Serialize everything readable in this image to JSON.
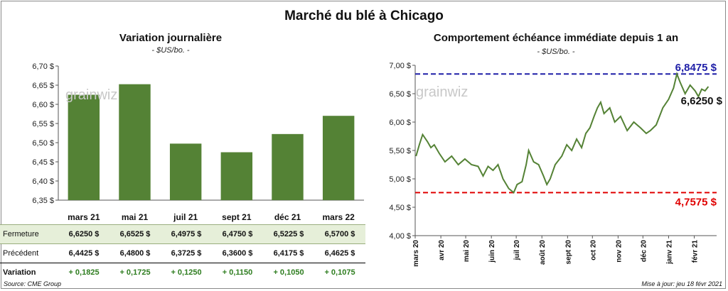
{
  "title": "Marché du blé à Chicago",
  "left_panel": {
    "title": "Variation journalière",
    "unit": "- $US/bo. -"
  },
  "right_panel": {
    "title": "Comportement échéance immédiate depuis 1 an",
    "unit": "- $US/bo. -"
  },
  "watermark": "grainwiz",
  "table": {
    "rows": [
      {
        "label": "Fermeture",
        "values": [
          "6,6250 $",
          "6,6525 $",
          "6,4975 $",
          "6,4750 $",
          "6,5225 $",
          "6,5700 $"
        ]
      },
      {
        "label": "Précédent",
        "values": [
          "6,4425 $",
          "6,4800 $",
          "6,3725 $",
          "6,3600 $",
          "6,4175 $",
          "6,4625 $"
        ]
      },
      {
        "label": "Variation",
        "values": [
          "+ 0,1825",
          "+ 0,1725",
          "+ 0,1250",
          "+ 0,1150",
          "+ 0,1050",
          "+ 0,1075"
        ]
      }
    ]
  },
  "footer": {
    "source": "Source: CME Group",
    "updated": "Mise à jour: jeu 18 févr 2021"
  },
  "colors": {
    "bar": "#548235",
    "line": "#548235",
    "high": "#1f1fa8",
    "low": "#e00000",
    "up": "#2e7d1f"
  },
  "chart_data": [
    {
      "type": "bar",
      "title": "Variation journalière",
      "categories": [
        "mars 21",
        "mai 21",
        "juil 21",
        "sept 21",
        "déc 21",
        "mars 22"
      ],
      "values": [
        6.625,
        6.6525,
        6.4975,
        6.475,
        6.5225,
        6.57
      ],
      "ylim": [
        6.35,
        6.7
      ],
      "yticks": [
        6.35,
        6.4,
        6.45,
        6.5,
        6.55,
        6.6,
        6.65,
        6.7
      ],
      "ytick_labels": [
        "6,35 $",
        "6,40 $",
        "6,45 $",
        "6,50 $",
        "6,55 $",
        "6,60 $",
        "6,65 $",
        "6,70 $"
      ],
      "ylabel": "$US/bo.",
      "grid": false
    },
    {
      "type": "line",
      "title": "Comportement échéance immédiate depuis 1 an",
      "ylabel": "$US/bo.",
      "ylim": [
        4.0,
        7.0
      ],
      "yticks": [
        4.0,
        4.5,
        5.0,
        5.5,
        6.0,
        6.5,
        7.0
      ],
      "ytick_labels": [
        "4,00 $",
        "4,50 $",
        "5,00 $",
        "5,50 $",
        "6,00 $",
        "6,50 $",
        "7,00 $"
      ],
      "xlim": [
        "2020-03-01",
        "2021-02-28"
      ],
      "xticks": [
        "2020-03-01",
        "2020-04-01",
        "2020-05-01",
        "2020-06-01",
        "2020-07-01",
        "2020-08-01",
        "2020-09-01",
        "2020-10-01",
        "2020-11-01",
        "2020-12-01",
        "2021-01-01",
        "2021-02-01"
      ],
      "xtick_labels": [
        "mars 20",
        "avr 20",
        "mai 20",
        "juin 20",
        "juil 20",
        "août 20",
        "sept 20",
        "oct 20",
        "nov 20",
        "déc 20",
        "janv 21",
        "févr 21"
      ],
      "series": [
        {
          "x": [
            "2020-03-02",
            "2020-03-06",
            "2020-03-10",
            "2020-03-16",
            "2020-03-20",
            "2020-03-24",
            "2020-03-30",
            "2020-04-06",
            "2020-04-14",
            "2020-04-22",
            "2020-04-30",
            "2020-05-08",
            "2020-05-16",
            "2020-05-22",
            "2020-05-28",
            "2020-06-03",
            "2020-06-09",
            "2020-06-15",
            "2020-06-22",
            "2020-06-28",
            "2020-07-02",
            "2020-07-08",
            "2020-07-13",
            "2020-07-16",
            "2020-07-22",
            "2020-07-28",
            "2020-08-03",
            "2020-08-07",
            "2020-08-11",
            "2020-08-17",
            "2020-08-25",
            "2020-08-31",
            "2020-09-06",
            "2020-09-12",
            "2020-09-18",
            "2020-09-23",
            "2020-09-28",
            "2020-10-03",
            "2020-10-07",
            "2020-10-11",
            "2020-10-15",
            "2020-10-22",
            "2020-10-28",
            "2020-11-04",
            "2020-11-12",
            "2020-11-20",
            "2020-11-28",
            "2020-12-05",
            "2020-12-10",
            "2020-12-17",
            "2020-12-25",
            "2021-01-01",
            "2021-01-07",
            "2021-01-11",
            "2021-01-15",
            "2021-01-21",
            "2021-01-27",
            "2021-02-02",
            "2021-02-06",
            "2021-02-10",
            "2021-02-14",
            "2021-02-18"
          ],
          "y": [
            5.4,
            5.6,
            5.78,
            5.65,
            5.55,
            5.6,
            5.45,
            5.3,
            5.4,
            5.25,
            5.35,
            5.25,
            5.22,
            5.05,
            5.22,
            5.15,
            5.25,
            5.0,
            4.83,
            4.7575,
            4.9,
            4.95,
            5.25,
            5.5,
            5.3,
            5.25,
            5.05,
            4.9,
            5.0,
            5.25,
            5.4,
            5.6,
            5.5,
            5.7,
            5.55,
            5.8,
            5.9,
            6.1,
            6.25,
            6.35,
            6.15,
            6.25,
            6.0,
            6.1,
            5.85,
            6.0,
            5.9,
            5.8,
            5.85,
            5.95,
            6.25,
            6.4,
            6.6,
            6.8475,
            6.7,
            6.5,
            6.65,
            6.55,
            6.45,
            6.58,
            6.55,
            6.625
          ]
        }
      ],
      "annotations": [
        {
          "label": "6,8475 $",
          "value": 6.8475,
          "kind": "high"
        },
        {
          "label": "4,7575 $",
          "value": 4.7575,
          "kind": "low"
        },
        {
          "label": "6,6250 $",
          "value": 6.625,
          "kind": "last"
        }
      ],
      "grid": false
    }
  ]
}
